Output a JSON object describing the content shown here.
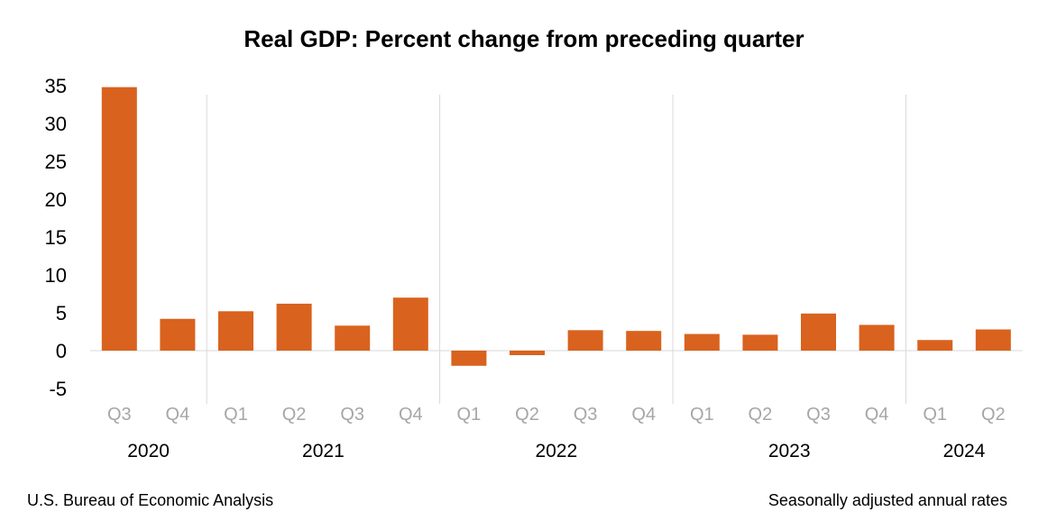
{
  "chart_data": {
    "type": "bar",
    "title": "Real GDP: Percent change from preceding quarter",
    "categories": [
      "Q3",
      "Q4",
      "Q1",
      "Q2",
      "Q3",
      "Q4",
      "Q1",
      "Q2",
      "Q3",
      "Q4",
      "Q1",
      "Q2",
      "Q3",
      "Q4",
      "Q1",
      "Q2"
    ],
    "years": [
      {
        "label": "2020",
        "start": 0,
        "end": 1
      },
      {
        "label": "2021",
        "start": 2,
        "end": 5
      },
      {
        "label": "2022",
        "start": 6,
        "end": 9
      },
      {
        "label": "2023",
        "start": 10,
        "end": 13
      },
      {
        "label": "2024",
        "start": 14,
        "end": 15
      }
    ],
    "values": [
      34.8,
      4.2,
      5.2,
      6.2,
      3.3,
      7.0,
      -2.0,
      -0.6,
      2.7,
      2.6,
      2.2,
      2.1,
      4.9,
      3.4,
      1.4,
      2.8
    ],
    "yticks": [
      35,
      30,
      25,
      20,
      15,
      10,
      5,
      0,
      -5
    ],
    "ylim": [
      -5,
      35
    ],
    "bar_color": "#d9621e",
    "xlabel": "",
    "ylabel": "",
    "grid": false,
    "legend": "none"
  },
  "footer": {
    "source": "U.S. Bureau of Economic Analysis",
    "note": "Seasonally adjusted annual rates"
  }
}
